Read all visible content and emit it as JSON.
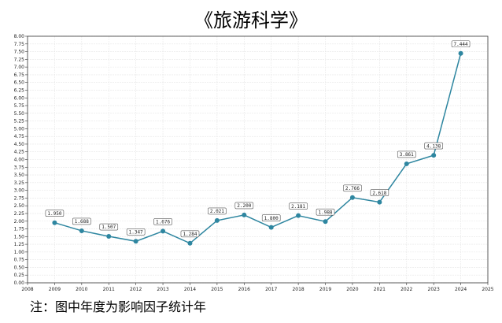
{
  "chart_data": {
    "type": "line",
    "title": "《旅游科学》",
    "footnote": "注：图中年度为影响因子统计年",
    "xlabel": "",
    "ylabel": "",
    "x": [
      2009,
      2010,
      2011,
      2012,
      2013,
      2014,
      2015,
      2016,
      2017,
      2018,
      2019,
      2020,
      2021,
      2022,
      2023,
      2024
    ],
    "series": [
      {
        "name": "影响因子",
        "values": [
          1.95,
          1.688,
          1.507,
          1.347,
          1.676,
          1.284,
          2.021,
          2.2,
          1.8,
          2.181,
          1.988,
          2.766,
          2.618,
          3.861,
          4.138,
          7.444
        ]
      }
    ],
    "data_labels": [
      "1.950",
      "1.688",
      "1.507",
      "1.347",
      "1.676",
      "1.284",
      "2.021",
      "2.200",
      "1.800",
      "2.181",
      "1.988",
      "2.766",
      "2.618",
      "3.861",
      "4.138",
      "7.444"
    ],
    "xlim": [
      2008,
      2025
    ],
    "ylim": [
      0,
      8
    ],
    "ytick_step": 0.25,
    "grid": true,
    "color": "#2e86a0"
  }
}
